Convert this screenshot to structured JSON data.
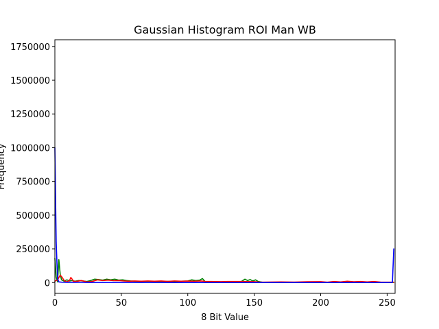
{
  "chart_data": {
    "type": "line",
    "title": "Gaussian Histogram ROI Man WB",
    "xlabel": "8 Bit Value",
    "ylabel": "Frequency",
    "xlim": [
      0,
      256
    ],
    "ylim": [
      -80000,
      1800000
    ],
    "x_ticks": [
      0,
      50,
      100,
      150,
      200,
      250
    ],
    "y_ticks": [
      0,
      250000,
      500000,
      750000,
      1000000,
      1250000,
      1500000,
      1750000
    ],
    "grid": false,
    "series": [
      {
        "name": "blue",
        "color": "#0000ff",
        "points": [
          [
            0,
            1000000
          ],
          [
            1,
            300000
          ],
          [
            2,
            30000
          ],
          [
            3,
            5000
          ],
          [
            5,
            3000
          ],
          [
            10,
            2000
          ],
          [
            20,
            1500
          ],
          [
            30,
            1000
          ],
          [
            40,
            900
          ],
          [
            50,
            800
          ],
          [
            60,
            700
          ],
          [
            80,
            600
          ],
          [
            100,
            500
          ],
          [
            120,
            500
          ],
          [
            140,
            400
          ],
          [
            160,
            400
          ],
          [
            180,
            300
          ],
          [
            200,
            300
          ],
          [
            220,
            300
          ],
          [
            240,
            300
          ],
          [
            250,
            500
          ],
          [
            253,
            600
          ],
          [
            254,
            2000
          ],
          [
            255,
            250000
          ]
        ]
      },
      {
        "name": "green",
        "color": "#008000",
        "points": [
          [
            0,
            180000
          ],
          [
            1,
            40000
          ],
          [
            2,
            5000
          ],
          [
            3,
            170000
          ],
          [
            4,
            60000
          ],
          [
            5,
            20000
          ],
          [
            7,
            10000
          ],
          [
            9,
            20000
          ],
          [
            11,
            12000
          ],
          [
            13,
            15000
          ],
          [
            15,
            10000
          ],
          [
            18,
            15000
          ],
          [
            21,
            12000
          ],
          [
            24,
            8000
          ],
          [
            27,
            15000
          ],
          [
            30,
            25000
          ],
          [
            33,
            22000
          ],
          [
            36,
            18000
          ],
          [
            39,
            25000
          ],
          [
            42,
            20000
          ],
          [
            45,
            25000
          ],
          [
            48,
            18000
          ],
          [
            51,
            20000
          ],
          [
            54,
            15000
          ],
          [
            57,
            12000
          ],
          [
            60,
            10000
          ],
          [
            65,
            8000
          ],
          [
            70,
            10000
          ],
          [
            75,
            8000
          ],
          [
            80,
            7000
          ],
          [
            85,
            9000
          ],
          [
            90,
            8000
          ],
          [
            95,
            10000
          ],
          [
            100,
            12000
          ],
          [
            103,
            20000
          ],
          [
            106,
            15000
          ],
          [
            109,
            18000
          ],
          [
            111,
            30000
          ],
          [
            113,
            8000
          ],
          [
            118,
            5000
          ],
          [
            125,
            4000
          ],
          [
            130,
            5000
          ],
          [
            135,
            4000
          ],
          [
            140,
            6000
          ],
          [
            143,
            25000
          ],
          [
            145,
            15000
          ],
          [
            147,
            22000
          ],
          [
            149,
            12000
          ],
          [
            151,
            20000
          ],
          [
            153,
            8000
          ],
          [
            156,
            3000
          ],
          [
            160,
            2000
          ],
          [
            170,
            2000
          ],
          [
            180,
            1500
          ],
          [
            190,
            2000
          ],
          [
            200,
            2000
          ],
          [
            210,
            1500
          ],
          [
            220,
            2000
          ],
          [
            230,
            1500
          ],
          [
            240,
            1500
          ],
          [
            250,
            1000
          ],
          [
            255,
            1000
          ]
        ]
      },
      {
        "name": "red",
        "color": "#ff0000",
        "points": [
          [
            0,
            10000
          ],
          [
            2,
            20000
          ],
          [
            4,
            55000
          ],
          [
            5,
            45000
          ],
          [
            7,
            15000
          ],
          [
            9,
            5000
          ],
          [
            11,
            15000
          ],
          [
            12,
            38000
          ],
          [
            13,
            25000
          ],
          [
            14,
            8000
          ],
          [
            17,
            10000
          ],
          [
            20,
            15000
          ],
          [
            24,
            5000
          ],
          [
            28,
            8000
          ],
          [
            32,
            20000
          ],
          [
            36,
            15000
          ],
          [
            40,
            18000
          ],
          [
            44,
            14000
          ],
          [
            48,
            15000
          ],
          [
            52,
            12000
          ],
          [
            56,
            10000
          ],
          [
            60,
            12000
          ],
          [
            65,
            10000
          ],
          [
            70,
            12000
          ],
          [
            75,
            10000
          ],
          [
            80,
            12000
          ],
          [
            85,
            9000
          ],
          [
            90,
            12000
          ],
          [
            95,
            10000
          ],
          [
            100,
            11000
          ],
          [
            105,
            10000
          ],
          [
            110,
            12000
          ],
          [
            113,
            9000
          ],
          [
            118,
            8000
          ],
          [
            125,
            7000
          ],
          [
            130,
            8000
          ],
          [
            140,
            8000
          ],
          [
            150,
            7000
          ],
          [
            155,
            3000
          ],
          [
            160,
            4000
          ],
          [
            170,
            5000
          ],
          [
            180,
            4000
          ],
          [
            190,
            6000
          ],
          [
            200,
            7000
          ],
          [
            205,
            3000
          ],
          [
            210,
            8000
          ],
          [
            215,
            5000
          ],
          [
            220,
            10000
          ],
          [
            225,
            6000
          ],
          [
            230,
            8000
          ],
          [
            235,
            5000
          ],
          [
            240,
            8000
          ],
          [
            245,
            4000
          ],
          [
            250,
            3000
          ],
          [
            255,
            3000
          ]
        ]
      }
    ]
  }
}
